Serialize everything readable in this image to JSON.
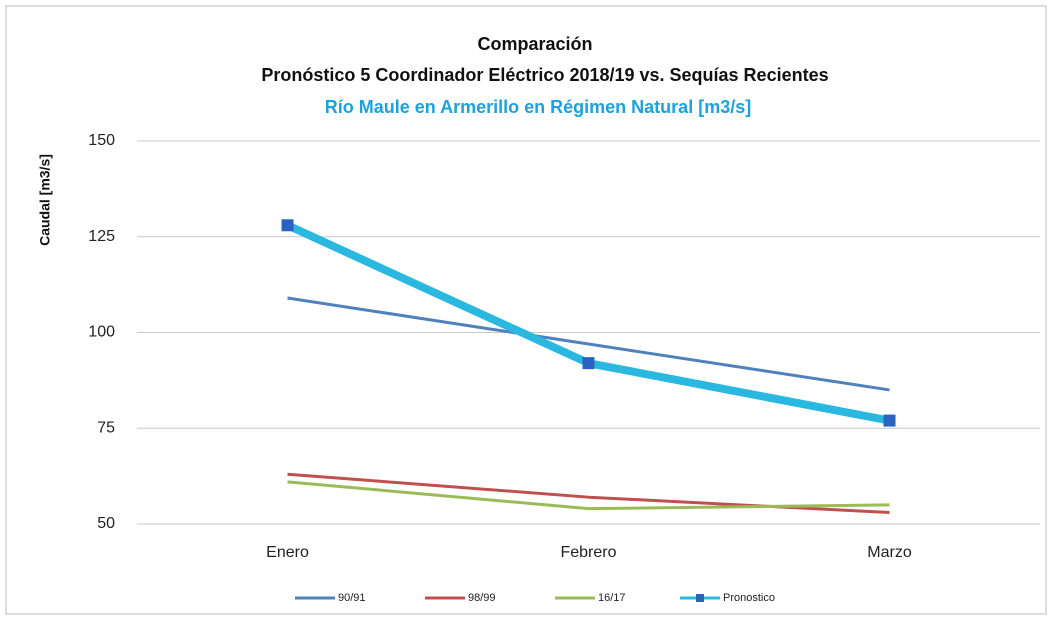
{
  "chart_data": {
    "type": "line",
    "title": "Comparación",
    "title2": "Pronóstico 5 Coordinador  Eléctrico 2018/19 vs. Sequías Recientes",
    "subtitle": "Río Maule en Armerillo en Régimen Natural [m3/s]",
    "ylabel": "Caudal [m3/s]",
    "categories": [
      "Enero",
      "Febrero",
      "Marzo"
    ],
    "series": [
      {
        "name": "90/91",
        "color": "#4f81bd",
        "values": [
          109,
          97,
          85
        ]
      },
      {
        "name": "98/99",
        "color": "#c0504d",
        "values": [
          63,
          57,
          53
        ]
      },
      {
        "name": "16/17",
        "color": "#9bbb59",
        "values": [
          61,
          54,
          55
        ]
      },
      {
        "name": "Pronostico",
        "color": "#2bb8e0",
        "marker_color": "#2a64c0",
        "values": [
          128,
          92,
          77
        ]
      }
    ],
    "ylim": [
      50,
      150
    ],
    "yticks": [
      50,
      75,
      100,
      125,
      150
    ],
    "grid": true,
    "legend": "bottom"
  }
}
